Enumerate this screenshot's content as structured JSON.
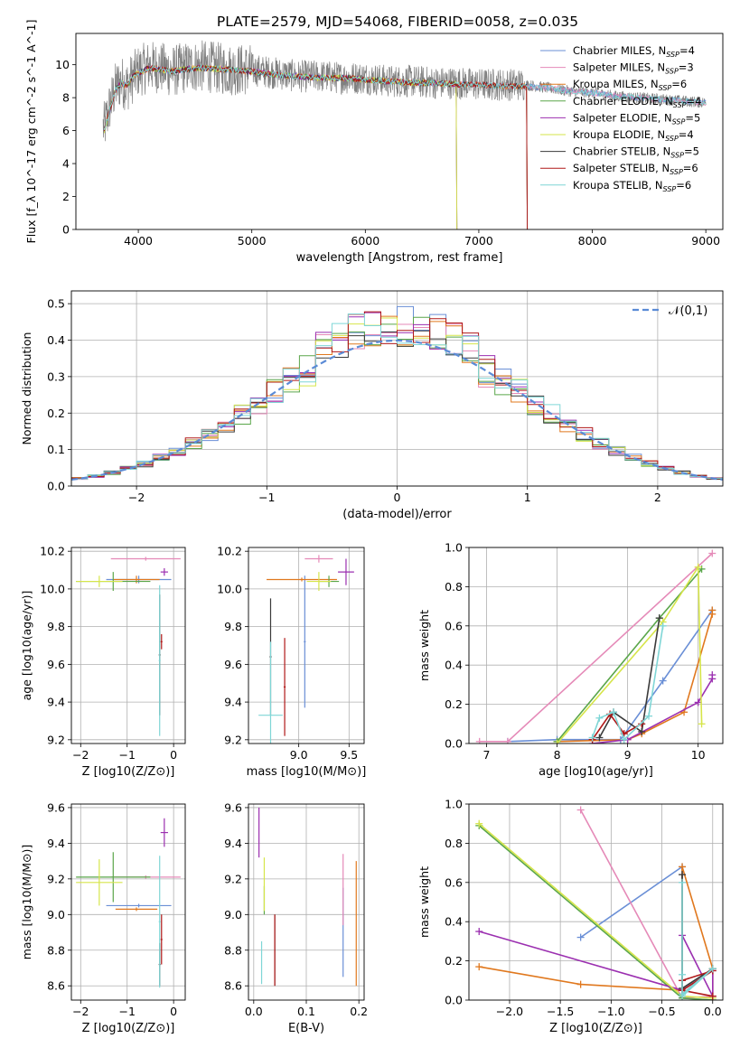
{
  "figure_title": "PLATE=2579, MJD=54068, FIBERID=0058, z=0.035",
  "colors": {
    "Chabrier MILES": "#6a8fd6",
    "Salpeter MILES": "#e58ab8",
    "Kroupa MILES": "#e0781e",
    "Chabrier ELODIE": "#5aa64a",
    "Salpeter ELODIE": "#9b2fb0",
    "Kroupa ELODIE": "#d6e54a",
    "Chabrier STELIB": "#3a3a3a",
    "Salpeter STELIB": "#b01818",
    "Kroupa STELIB": "#7fd6d6"
  },
  "legend_models": [
    {
      "name": "Chabrier MILES",
      "nssp": "4"
    },
    {
      "name": "Salpeter MILES",
      "nssp": "3"
    },
    {
      "name": "Kroupa MILES",
      "nssp": "6"
    },
    {
      "name": "Chabrier ELODIE",
      "nssp": "4"
    },
    {
      "name": "Salpeter ELODIE",
      "nssp": "5"
    },
    {
      "name": "Kroupa ELODIE",
      "nssp": "4"
    },
    {
      "name": "Chabrier STELIB",
      "nssp": "5"
    },
    {
      "name": "Salpeter STELIB",
      "nssp": "6"
    },
    {
      "name": "Kroupa STELIB",
      "nssp": "6"
    }
  ],
  "chart_data": [
    {
      "id": "spectrum",
      "type": "line",
      "xlabel": "wavelength [Angstrom, rest frame]",
      "ylabel": "Flux [f_λ 10^-17 erg cm^-2 s^-1 A^-1]",
      "xlim": [
        3450,
        9150
      ],
      "ylim": [
        0,
        11.9
      ],
      "xticks": [
        4000,
        5000,
        6000,
        7000,
        8000,
        9000
      ],
      "yticks": [
        0,
        2,
        4,
        6,
        8,
        10
      ],
      "grid": false,
      "legend": "upper-right",
      "data_x": [
        3700,
        3750,
        3800,
        3850,
        3900,
        3950,
        4000,
        4100,
        4200,
        4300,
        4400,
        4500,
        4600,
        4800,
        5000,
        5200,
        5400,
        5600,
        5800,
        6000,
        6200,
        6400,
        6600,
        6800,
        7000,
        7200,
        7400,
        7600,
        7800,
        8000,
        8200,
        8400,
        8600,
        8800,
        9000
      ],
      "data_y": [
        6.2,
        7.5,
        8.6,
        9.0,
        8.7,
        9.2,
        9.6,
        9.9,
        9.8,
        9.6,
        9.8,
        9.9,
        9.9,
        9.7,
        9.7,
        9.5,
        9.3,
        9.3,
        9.2,
        9.2,
        9.0,
        9.0,
        8.9,
        8.9,
        8.8,
        8.8,
        8.8,
        8.6,
        8.4,
        8.3,
        8.1,
        8.0,
        7.9,
        7.8,
        7.7
      ],
      "model_y": [
        6.0,
        7.3,
        8.5,
        8.9,
        8.7,
        9.3,
        9.5,
        9.8,
        9.7,
        9.6,
        9.7,
        9.8,
        9.8,
        9.7,
        9.6,
        9.4,
        9.3,
        9.2,
        9.2,
        9.1,
        9.0,
        8.9,
        8.9,
        8.8,
        8.8,
        8.7,
        8.7,
        8.6,
        8.4,
        8.3,
        8.1,
        8.0,
        7.9,
        7.8,
        7.7
      ],
      "model_ranges": [
        [
          3700,
          9000
        ],
        [
          3700,
          9000
        ],
        [
          3700,
          7420
        ],
        [
          3700,
          6800
        ],
        [
          3700,
          6800
        ],
        [
          3700,
          6800
        ],
        [
          3700,
          7420
        ],
        [
          3700,
          7420
        ],
        [
          3700,
          9000
        ]
      ]
    },
    {
      "id": "residuals",
      "type": "line",
      "xlabel": "(data-model)/error",
      "ylabel": "Normed distribution",
      "xlim": [
        -2.5,
        2.5
      ],
      "ylim": [
        0,
        0.535
      ],
      "xticks": [
        -2,
        -1,
        0,
        1,
        2
      ],
      "yticks": [
        0.0,
        0.1,
        0.2,
        0.3,
        0.4,
        0.5
      ],
      "grid": true,
      "legend": "upper-right",
      "curve_label": "𝒩(0,1)",
      "curve": {
        "type": "normal",
        "mean": 0,
        "sigma": 1
      },
      "hist_bins": 40
    },
    {
      "id": "age_vs_Z",
      "type": "scatter",
      "xlabel": "Z [log10(Z/Z⊙)]",
      "ylabel": "age [log10(age/yr)]",
      "xlim": [
        -2.2,
        0.25
      ],
      "ylim": [
        9.18,
        10.22
      ],
      "xticks": [
        -2,
        -1,
        0
      ],
      "yticks": [
        9.2,
        9.4,
        9.6,
        9.8,
        10.0,
        10.2
      ],
      "grid": true,
      "points": [
        {
          "model": "Chabrier MILES",
          "x": -0.75,
          "xerr": 0.7,
          "y": 10.05,
          "yerr": 0.02
        },
        {
          "model": "Salpeter MILES",
          "x": -0.6,
          "xerr": 0.75,
          "y": 10.16,
          "yerr": 0.01
        },
        {
          "model": "Kroupa MILES",
          "x": -0.8,
          "xerr": 0.5,
          "y": 10.05,
          "yerr": 0.02
        },
        {
          "model": "Chabrier ELODIE",
          "x": -1.3,
          "xerr": 0.8,
          "y": 10.04,
          "yerr": 0.05
        },
        {
          "model": "Salpeter ELODIE",
          "x": -0.2,
          "xerr": 0.08,
          "y": 10.09,
          "yerr": 0.02
        },
        {
          "model": "Kroupa ELODIE",
          "x": -1.6,
          "xerr": 0.5,
          "y": 10.04,
          "yerr": 0.03
        },
        {
          "model": "Chabrier STELIB",
          "x": -0.3,
          "xerr": 0.02,
          "y": 9.65,
          "yerr": 0.32
        },
        {
          "model": "Salpeter STELIB",
          "x": -0.26,
          "xerr": 0.02,
          "y": 9.72,
          "yerr": 0.04
        },
        {
          "model": "Kroupa STELIB",
          "x": -0.3,
          "xerr": 0.02,
          "y": 9.62,
          "yerr": 0.4
        }
      ]
    },
    {
      "id": "age_vs_mass",
      "type": "scatter",
      "xlabel": "mass [log10(M/M⊙)]",
      "ylabel": "",
      "xlim": [
        8.5,
        9.65
      ],
      "ylim": [
        9.18,
        10.22
      ],
      "xticks": [
        9.0,
        9.5
      ],
      "yticks": [
        9.2,
        9.4,
        9.6,
        9.8,
        10.0,
        10.2
      ],
      "grid": true,
      "points": [
        {
          "model": "Chabrier MILES",
          "x": 9.06,
          "xerr": 0.01,
          "y": 9.72,
          "yerr": 0.35
        },
        {
          "model": "Salpeter MILES",
          "x": 9.2,
          "xerr": 0.14,
          "y": 10.16,
          "yerr": 0.02
        },
        {
          "model": "Kroupa MILES",
          "x": 9.03,
          "xerr": 0.35,
          "y": 10.05,
          "yerr": 0.01
        },
        {
          "model": "Chabrier ELODIE",
          "x": 9.3,
          "xerr": 0.1,
          "y": 10.04,
          "yerr": 0.03
        },
        {
          "model": "Salpeter ELODIE",
          "x": 9.47,
          "xerr": 0.08,
          "y": 10.09,
          "yerr": 0.07
        },
        {
          "model": "Kroupa ELODIE",
          "x": 9.2,
          "xerr": 0.12,
          "y": 10.04,
          "yerr": 0.05
        },
        {
          "model": "Chabrier STELIB",
          "x": 8.72,
          "xerr": 0.01,
          "y": 9.64,
          "yerr": 0.31
        },
        {
          "model": "Salpeter STELIB",
          "x": 8.86,
          "xerr": 0.01,
          "y": 9.48,
          "yerr": 0.26
        },
        {
          "model": "Kroupa STELIB",
          "x": 8.72,
          "xerr": 0.12,
          "y": 9.33,
          "yerr": 0.39
        }
      ]
    },
    {
      "id": "mass_weight_vs_age",
      "type": "line",
      "xlabel": "age [log10(age/yr)]",
      "ylabel": "mass weight",
      "xlim": [
        6.75,
        10.35
      ],
      "ylim": [
        0,
        1.0
      ],
      "xticks": [
        7,
        8,
        9,
        10
      ],
      "yticks": [
        0.0,
        0.2,
        0.4,
        0.6,
        0.8,
        1.0
      ],
      "grid": true,
      "series": [
        {
          "model": "Chabrier MILES",
          "x": [
            7.3,
            8.0,
            8.9,
            9.5,
            10.2
          ],
          "y": [
            0.01,
            0.02,
            0.02,
            0.32,
            0.68
          ]
        },
        {
          "model": "Salpeter MILES",
          "x": [
            6.9,
            7.3,
            10.2
          ],
          "y": [
            0.01,
            0.01,
            0.97
          ]
        },
        {
          "model": "Kroupa MILES",
          "x": [
            8.0,
            9.0,
            9.2,
            9.8,
            10.2,
            10.2
          ],
          "y": [
            0.01,
            0.02,
            0.05,
            0.16,
            0.66,
            0.68
          ]
        },
        {
          "model": "Chabrier ELODIE",
          "x": [
            8.0,
            9.45,
            10.05
          ],
          "y": [
            0.01,
            0.64,
            0.89
          ]
        },
        {
          "model": "Salpeter ELODIE",
          "x": [
            8.5,
            9.0,
            10.0,
            10.2,
            10.2
          ],
          "y": [
            0.0,
            0.02,
            0.21,
            0.33,
            0.35
          ]
        },
        {
          "model": "Kroupa ELODIE",
          "x": [
            8.0,
            9.5,
            10.0,
            10.05
          ],
          "y": [
            0.0,
            0.62,
            0.9,
            0.1
          ]
        },
        {
          "model": "Chabrier STELIB",
          "x": [
            8.6,
            8.8,
            9.2,
            9.45
          ],
          "y": [
            0.03,
            0.16,
            0.06,
            0.64
          ]
        },
        {
          "model": "Salpeter STELIB",
          "x": [
            8.5,
            8.75,
            8.95,
            9.2
          ],
          "y": [
            0.02,
            0.15,
            0.05,
            0.1
          ]
        },
        {
          "model": "Kroupa STELIB",
          "x": [
            8.5,
            8.6,
            8.8,
            8.95,
            9.3,
            9.5
          ],
          "y": [
            0.03,
            0.13,
            0.16,
            0.02,
            0.14,
            0.6
          ]
        }
      ]
    },
    {
      "id": "mass_vs_Z",
      "type": "scatter",
      "xlabel": "Z [log10(Z/Z⊙)]",
      "ylabel": "mass [log10(M/M⊙)]",
      "xlim": [
        -2.2,
        0.25
      ],
      "ylim": [
        8.52,
        9.62
      ],
      "xticks": [
        -2,
        -1,
        0
      ],
      "yticks": [
        8.6,
        8.8,
        9.0,
        9.2,
        9.4,
        9.6
      ],
      "grid": true,
      "points": [
        {
          "model": "Chabrier MILES",
          "x": -0.75,
          "xerr": 0.7,
          "y": 9.05,
          "yerr": 0.01
        },
        {
          "model": "Salpeter MILES",
          "x": -0.6,
          "xerr": 0.75,
          "y": 9.21,
          "yerr": 0.01
        },
        {
          "model": "Kroupa MILES",
          "x": -0.8,
          "xerr": 0.45,
          "y": 9.03,
          "yerr": 0.01
        },
        {
          "model": "Chabrier ELODIE",
          "x": -1.3,
          "xerr": 0.8,
          "y": 9.21,
          "yerr": 0.14
        },
        {
          "model": "Salpeter ELODIE",
          "x": -0.2,
          "xerr": 0.08,
          "y": 9.46,
          "yerr": 0.08
        },
        {
          "model": "Kroupa ELODIE",
          "x": -1.6,
          "xerr": 0.5,
          "y": 9.18,
          "yerr": 0.13
        },
        {
          "model": "Chabrier STELIB",
          "x": -0.3,
          "xerr": 0.02,
          "y": 8.72,
          "yerr": 0.12
        },
        {
          "model": "Salpeter STELIB",
          "x": -0.26,
          "xerr": 0.02,
          "y": 8.86,
          "yerr": 0.14
        },
        {
          "model": "Kroupa STELIB",
          "x": -0.3,
          "xerr": 0.02,
          "y": 8.96,
          "yerr": 0.37
        }
      ]
    },
    {
      "id": "mass_vs_EBV",
      "type": "scatter",
      "xlabel": "E(B-V)",
      "ylabel": "",
      "xlim": [
        -0.01,
        0.21
      ],
      "ylim": [
        8.52,
        9.62
      ],
      "xticks": [
        0.0,
        0.1,
        0.2
      ],
      "yticks": [
        8.6,
        8.8,
        9.0,
        9.2,
        9.4,
        9.6
      ],
      "grid": true,
      "points": [
        {
          "model": "Chabrier MILES",
          "x": 0.17,
          "xerr": 0,
          "y": 8.9,
          "yerr": 0.25
        },
        {
          "model": "Salpeter MILES",
          "x": 0.17,
          "xerr": 0,
          "y": 9.14,
          "yerr": 0.2
        },
        {
          "model": "Kroupa MILES",
          "x": 0.195,
          "xerr": 0,
          "y": 8.95,
          "yerr": 0.35
        },
        {
          "model": "Chabrier ELODIE",
          "x": 0.02,
          "xerr": 0,
          "y": 9.08,
          "yerr": 0.08
        },
        {
          "model": "Salpeter ELODIE",
          "x": 0.01,
          "xerr": 0,
          "y": 9.46,
          "yerr": 0.14
        },
        {
          "model": "Kroupa ELODIE",
          "x": 0.02,
          "xerr": 0,
          "y": 9.17,
          "yerr": 0.15
        },
        {
          "model": "Chabrier STELIB",
          "x": 0.04,
          "xerr": 0,
          "y": 8.8,
          "yerr": 0.2
        },
        {
          "model": "Salpeter STELIB",
          "x": 0.04,
          "xerr": 0,
          "y": 8.8,
          "yerr": 0.2
        },
        {
          "model": "Kroupa STELIB",
          "x": 0.015,
          "xerr": 0,
          "y": 8.73,
          "yerr": 0.12
        }
      ]
    },
    {
      "id": "mass_weight_vs_Z",
      "type": "line",
      "xlabel": "Z [log10(Z/Z⊙)]",
      "ylabel": "mass weight",
      "xlim": [
        -2.4,
        0.1
      ],
      "ylim": [
        0,
        1.0
      ],
      "xticks": [
        -2.0,
        -1.5,
        -1.0,
        -0.5,
        0.0
      ],
      "yticks": [
        0.0,
        0.2,
        0.4,
        0.6,
        0.8,
        1.0
      ],
      "grid": true,
      "series": [
        {
          "model": "Chabrier MILES",
          "x": [
            -1.3,
            -0.3,
            -0.3,
            -0.3,
            0.0
          ],
          "y": [
            0.32,
            0.68,
            0.02,
            0.01,
            0.0
          ]
        },
        {
          "model": "Salpeter MILES",
          "x": [
            -1.3,
            -0.3,
            0.0
          ],
          "y": [
            0.97,
            0.01,
            0.02
          ]
        },
        {
          "model": "Kroupa MILES",
          "x": [
            -2.3,
            -1.3,
            -0.3,
            -0.3,
            0.0,
            0.0
          ],
          "y": [
            0.17,
            0.08,
            0.05,
            0.68,
            0.16,
            0.02
          ]
        },
        {
          "model": "Chabrier ELODIE",
          "x": [
            -2.3,
            -0.3,
            0.0
          ],
          "y": [
            0.89,
            0.01,
            0.0
          ]
        },
        {
          "model": "Salpeter ELODIE",
          "x": [
            -2.3,
            -0.3,
            0.0,
            0.0,
            -0.3
          ],
          "y": [
            0.35,
            0.05,
            0.15,
            0.02,
            0.33
          ]
        },
        {
          "model": "Kroupa ELODIE",
          "x": [
            -2.3,
            -0.3,
            0.0
          ],
          "y": [
            0.9,
            0.02,
            0.01
          ]
        },
        {
          "model": "Chabrier STELIB",
          "x": [
            -0.3,
            -0.3,
            0.0,
            -0.3
          ],
          "y": [
            0.64,
            0.06,
            0.16,
            0.03
          ]
        },
        {
          "model": "Salpeter STELIB",
          "x": [
            -0.3,
            0.0,
            -0.3,
            0.0
          ],
          "y": [
            0.1,
            0.15,
            0.05,
            0.02
          ]
        },
        {
          "model": "Kroupa STELIB",
          "x": [
            -0.3,
            -0.3,
            -0.3,
            0.0,
            -0.3
          ],
          "y": [
            0.6,
            0.13,
            0.03,
            0.16,
            0.02
          ]
        }
      ]
    }
  ]
}
